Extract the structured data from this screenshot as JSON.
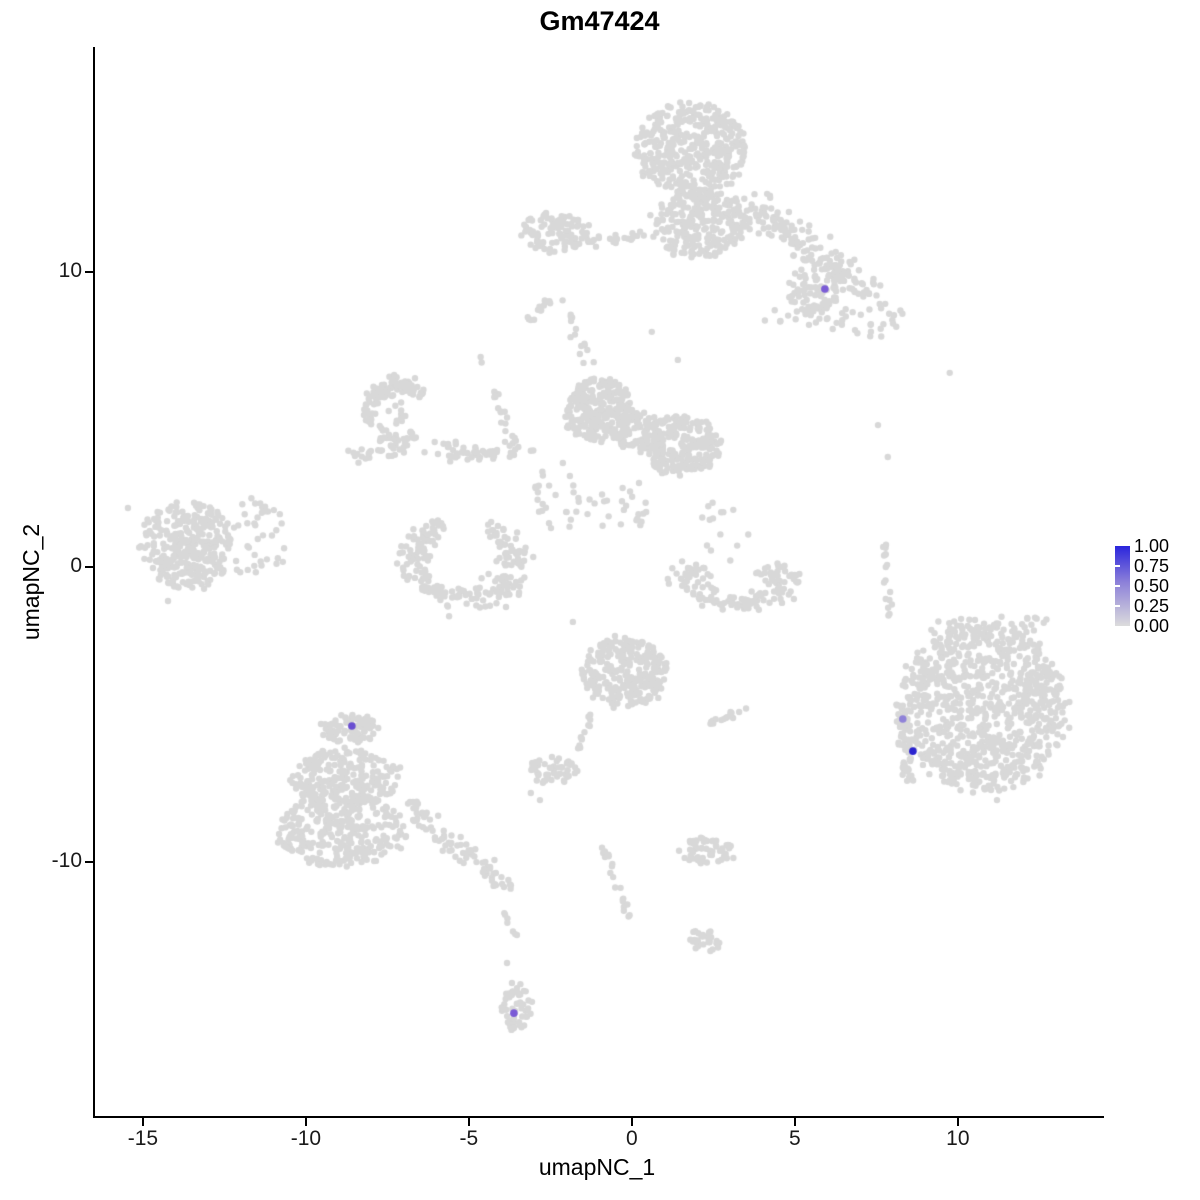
{
  "title": "Gm47424",
  "chart_data": {
    "type": "scatter",
    "title": "Gm47424",
    "xlabel": "umapNC_1",
    "ylabel": "umapNC_2",
    "xlim": [
      -16.47,
      14.36
    ],
    "ylim": [
      -18.64,
      17.59
    ],
    "x_ticks": [
      -15,
      -10,
      -5,
      0,
      5,
      10
    ],
    "y_ticks": [
      -10,
      0,
      10
    ],
    "grid": false,
    "legend_position": "right",
    "point_color_low": "#d8d8d8",
    "point_color_high": "#2922cf",
    "legend": {
      "labels": [
        "1.00",
        "0.75",
        "0.50",
        "0.25",
        "0.00"
      ],
      "gradient_top": "#2a25dc",
      "gradient_mid": "#8c80d9",
      "gradient_bottom": "#dcdcdc"
    },
    "clusters": [
      {
        "type": "blob",
        "x": 1.84,
        "y": 14.14,
        "rx": 1.69,
        "ry": 1.63,
        "n": 420
      },
      {
        "type": "blob",
        "x": 2.09,
        "y": 11.59,
        "rx": 1.47,
        "ry": 1.15,
        "n": 260
      },
      {
        "type": "blob",
        "x": -2.42,
        "y": 11.36,
        "rx": 1.1,
        "ry": 0.68,
        "n": 100
      },
      {
        "type": "strand",
        "x": -1.35,
        "y": 10.98,
        "x2": 0.49,
        "y2": 11.25,
        "w": 0.15,
        "n": 22
      },
      {
        "type": "strand",
        "x": 3.47,
        "y": 12.27,
        "x2": 7.45,
        "y2": 9.12,
        "w": 0.55,
        "n": 170
      },
      {
        "type": "blob",
        "x": 5.46,
        "y": 8.44,
        "rx": 1.5,
        "ry": 0.5,
        "n": 28
      },
      {
        "type": "blob",
        "x": 5.61,
        "y": 9.39,
        "rx": 0.86,
        "ry": 0.81,
        "n": 70
      },
      {
        "type": "blob",
        "x": 7.61,
        "y": 8.31,
        "rx": 0.95,
        "ry": 0.6,
        "n": 20
      },
      {
        "type": "strand",
        "x": -3.25,
        "y": 8.24,
        "x2": -2.55,
        "y2": 9.02,
        "w": 0.12,
        "n": 14
      },
      {
        "type": "strand",
        "x": -2.06,
        "y": 8.98,
        "x2": -1.35,
        "y2": 6.95,
        "w": 0.15,
        "n": 15
      },
      {
        "type": "arc",
        "x": -7.18,
        "y": 5.25,
        "rx": 0.88,
        "ry": 0.95,
        "a1": 35,
        "a2": 305,
        "th": 0.3,
        "n": 120
      },
      {
        "type": "blob",
        "x": -7.18,
        "y": 5.25,
        "rx": 0.45,
        "ry": 0.5,
        "n": 10
      },
      {
        "type": "strand",
        "x": -4.72,
        "y": 7.29,
        "x2": -3.68,
        "y2": 4.31,
        "w": 0.12,
        "n": 18
      },
      {
        "type": "strand",
        "x": -5.95,
        "y": 3.9,
        "x2": -3.07,
        "y2": 3.9,
        "w": 0.35,
        "n": 55
      },
      {
        "type": "strand",
        "x": -8.8,
        "y": 3.8,
        "x2": -6.35,
        "y2": 4.03,
        "w": 0.28,
        "n": 24
      },
      {
        "type": "blob",
        "x": -0.98,
        "y": 5.32,
        "rx": 1.07,
        "ry": 1.08,
        "n": 280
      },
      {
        "type": "blob",
        "x": 1.47,
        "y": 4.14,
        "rx": 1.23,
        "ry": 1.02,
        "n": 240
      },
      {
        "type": "blob",
        "x": 0.25,
        "y": 4.64,
        "rx": 0.8,
        "ry": 0.7,
        "n": 70
      },
      {
        "type": "blob",
        "x": -2.27,
        "y": 2.44,
        "rx": 0.8,
        "ry": 1.2,
        "n": 26
      },
      {
        "type": "blob",
        "x": -0.37,
        "y": 2.1,
        "rx": 1.0,
        "ry": 0.9,
        "n": 24
      },
      {
        "type": "blob",
        "x": -13.62,
        "y": 0.75,
        "rx": 1.44,
        "ry": 1.53,
        "n": 320
      },
      {
        "type": "blob",
        "x": -11.47,
        "y": 0.92,
        "rx": 0.9,
        "ry": 1.5,
        "n": 40
      },
      {
        "type": "arc",
        "x": -5.12,
        "y": 0.17,
        "rx": 1.53,
        "ry": 1.29,
        "a1": 115,
        "a2": 425,
        "th": 0.35,
        "n": 230
      },
      {
        "type": "arc",
        "x": 3.16,
        "y": -0.44,
        "rx": 1.44,
        "ry": 0.75,
        "a1": 140,
        "a2": 400,
        "th": 0.4,
        "n": 140
      },
      {
        "type": "strand",
        "x": 7.73,
        "y": 0.75,
        "x2": 7.91,
        "y2": -2.07,
        "w": 0.1,
        "n": 17
      },
      {
        "type": "blob",
        "x": 2.91,
        "y": 1.36,
        "rx": 0.8,
        "ry": 1.2,
        "n": 14
      },
      {
        "type": "blob",
        "x": -0.21,
        "y": -3.56,
        "rx": 1.32,
        "ry": 1.19,
        "n": 260
      },
      {
        "type": "strand",
        "x": -1.17,
        "y": -4.92,
        "x2": -1.69,
        "y2": -6.31,
        "w": 0.1,
        "n": 12
      },
      {
        "type": "blob",
        "x": -2.42,
        "y": -6.88,
        "rx": 0.75,
        "ry": 0.45,
        "n": 52
      },
      {
        "type": "strand",
        "x": 2.33,
        "y": -5.29,
        "x2": 3.56,
        "y2": -4.78,
        "w": 0.12,
        "n": 16
      },
      {
        "type": "blob",
        "x": 10.77,
        "y": -4.78,
        "rx": 2.55,
        "ry": 2.85,
        "n": 880
      },
      {
        "type": "strand",
        "x": 8.22,
        "y": -4.51,
        "x2": 8.47,
        "y2": -7.29,
        "w": 0.22,
        "n": 55
      },
      {
        "type": "blob",
        "x": 10.98,
        "y": -1.97,
        "rx": 1.8,
        "ry": 0.5,
        "n": 45
      },
      {
        "type": "blob",
        "x": -8.65,
        "y": -5.46,
        "rx": 0.95,
        "ry": 0.5,
        "n": 80
      },
      {
        "type": "blob",
        "x": -8.77,
        "y": -7.15,
        "rx": 1.7,
        "ry": 1.0,
        "n": 230
      },
      {
        "type": "blob",
        "x": -8.9,
        "y": -8.92,
        "rx": 1.96,
        "ry": 1.24,
        "n": 300
      },
      {
        "type": "strand",
        "x": -6.87,
        "y": -8.1,
        "x2": -3.87,
        "y2": -10.88,
        "w": 0.35,
        "n": 85
      },
      {
        "type": "strand",
        "x": -4.14,
        "y": -11.29,
        "x2": -3.56,
        "y2": -12.51,
        "w": 0.1,
        "n": 7
      },
      {
        "type": "strand",
        "x": -0.89,
        "y": -9.32,
        "x2": 0.0,
        "y2": -12.24,
        "w": 0.12,
        "n": 20
      },
      {
        "type": "blob",
        "x": 2.3,
        "y": -9.59,
        "rx": 0.9,
        "ry": 0.45,
        "n": 55
      },
      {
        "type": "blob",
        "x": 2.24,
        "y": -12.64,
        "rx": 0.55,
        "ry": 0.4,
        "n": 28
      },
      {
        "type": "blob",
        "x": -3.53,
        "y": -14.92,
        "rx": 0.5,
        "ry": 0.75,
        "n": 55
      },
      {
        "type": "singles",
        "pts": [
          [
            9.75,
            6.58
          ],
          [
            7.55,
            4.81
          ],
          [
            7.85,
            3.73
          ],
          [
            -15.46,
            2.0
          ],
          [
            -14.23,
            -1.15
          ],
          [
            11.2,
            -7.9
          ],
          [
            0.61,
            7.97
          ],
          [
            1.41,
            7.02
          ],
          [
            -1.81,
            -1.86
          ],
          [
            -3.83,
            -13.42
          ],
          [
            -3.68,
            -14.1
          ],
          [
            -3.1,
            -7.66
          ],
          [
            -2.82,
            -7.9
          ]
        ]
      }
    ],
    "highlighted_cells": [
      {
        "x": 5.92,
        "y": 9.42,
        "color": "#7b5cd6"
      },
      {
        "x": -8.59,
        "y": -5.39,
        "color": "#6a4fd1"
      },
      {
        "x": 8.31,
        "y": -5.15,
        "color": "#8f82d8"
      },
      {
        "x": 8.62,
        "y": -6.24,
        "color": "#2922cf"
      },
      {
        "x": -3.62,
        "y": -15.12,
        "color": "#7a5ad6"
      }
    ]
  }
}
